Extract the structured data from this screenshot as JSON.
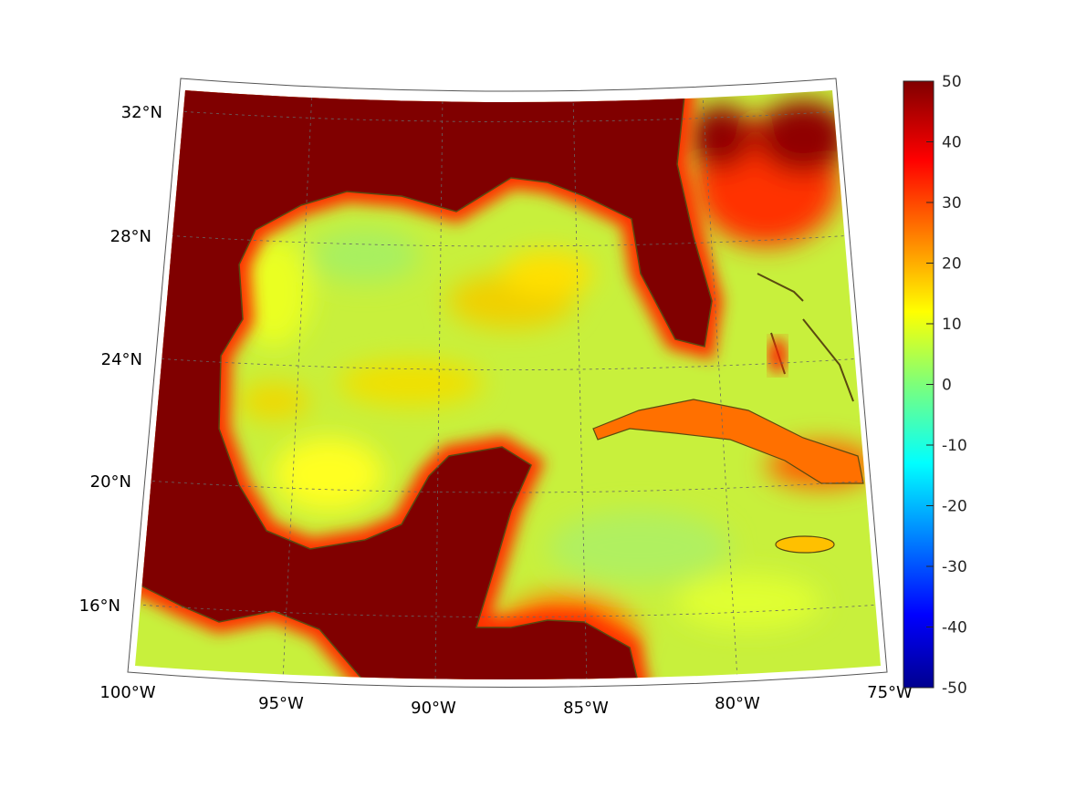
{
  "chart_data": {
    "type": "heatmap",
    "title": "",
    "projection": "conic map of Gulf of Mexico and Caribbean",
    "lon_range": [
      -100,
      -75
    ],
    "lat_range": [
      14,
      33
    ],
    "lat_ticks": [
      "32°N",
      "28°N",
      "24°N",
      "20°N",
      "16°N"
    ],
    "lon_ticks": [
      "100°W",
      "95°W",
      "90°W",
      "85°W",
      "80°W",
      "75°W"
    ],
    "grid": true,
    "colormap": "jet",
    "colorbar": {
      "range": [
        -50,
        50
      ],
      "ticks": [
        "50",
        "40",
        "30",
        "20",
        "10",
        "0",
        "-10",
        "-20",
        "-30",
        "-40",
        "-50"
      ],
      "placement": "right"
    },
    "summary": {
      "land_value": 50,
      "ocean_typical": [
        0,
        20
      ]
    }
  },
  "colors": {
    "land": "#800000",
    "coast": "#5a4a10",
    "ocean": "#c8f03c"
  }
}
